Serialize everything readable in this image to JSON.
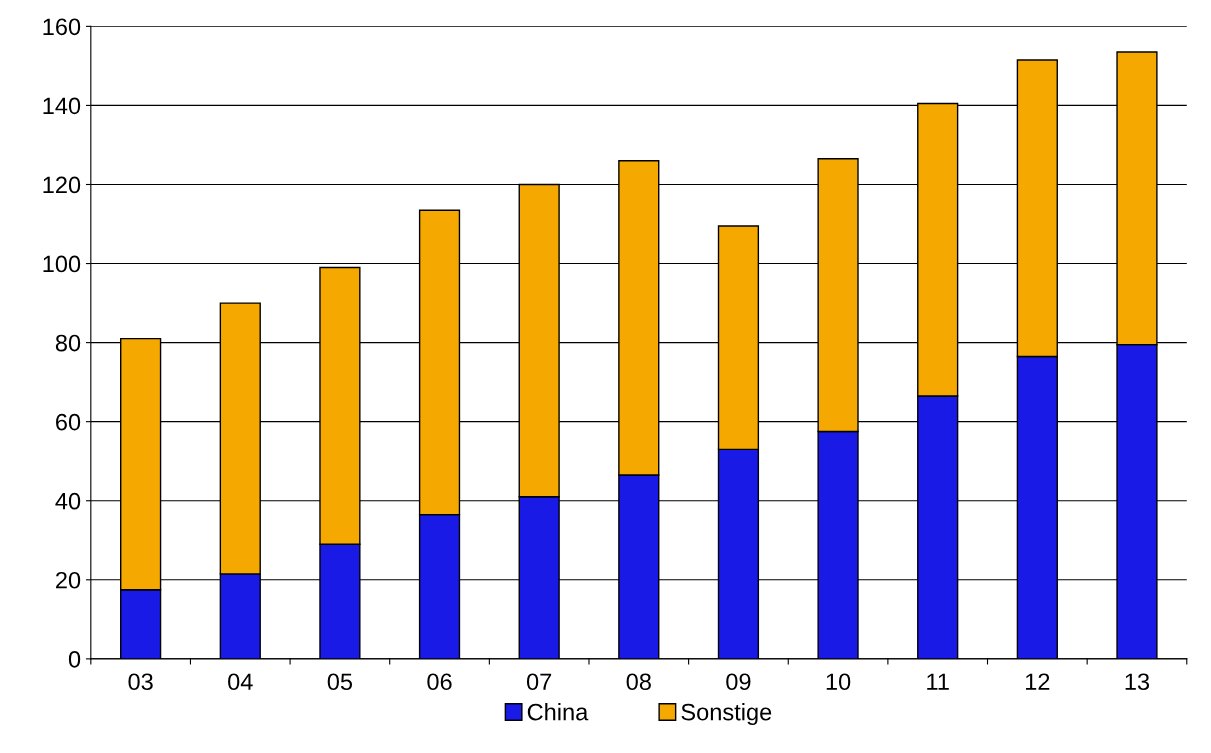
{
  "chart_data": {
    "type": "bar",
    "stacked": true,
    "categories": [
      "03",
      "04",
      "05",
      "06",
      "07",
      "08",
      "09",
      "10",
      "11",
      "12",
      "13"
    ],
    "series": [
      {
        "name": "China",
        "color": "#1a1ae6",
        "values": [
          17.5,
          21.5,
          29,
          36.5,
          41,
          46.5,
          53,
          57.5,
          66.5,
          76.5,
          79.5
        ]
      },
      {
        "name": "Sonstige",
        "color": "#f5a800",
        "values": [
          63.5,
          68.5,
          70,
          77,
          79,
          79.5,
          56.5,
          69,
          74,
          75,
          74
        ]
      }
    ],
    "ylim": [
      0,
      160
    ],
    "yticks": [
      0,
      20,
      40,
      60,
      80,
      100,
      120,
      140,
      160
    ],
    "grid": "y",
    "legend": "bottom"
  }
}
